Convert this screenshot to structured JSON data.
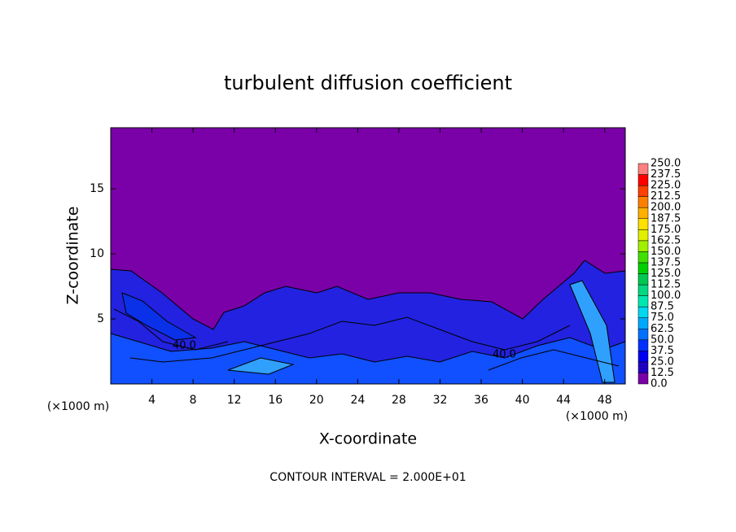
{
  "chart_data": {
    "type": "contour",
    "title": "turbulent diffusion coefficient",
    "xlabel": "X-coordinate",
    "ylabel": "Z-coordinate",
    "x_unit": "(×1000 m)",
    "x_unit_right": "(×1000 m)",
    "footnote": "CONTOUR INTERVAL = 2.000E+01",
    "annotations": [
      "40.0",
      "40.0"
    ],
    "xlim": [
      0,
      50
    ],
    "xticks": [
      4,
      8,
      12,
      16,
      20,
      24,
      28,
      32,
      36,
      40,
      44,
      48
    ],
    "ylim": [
      0,
      19.7
    ],
    "yticks": [
      5,
      10,
      15
    ],
    "colorbar": {
      "levels": [
        {
          "value": 0,
          "label": "0.0"
        },
        {
          "value": 12.5,
          "label": "12.5"
        },
        {
          "value": 25,
          "label": "25.0"
        },
        {
          "value": 37.5,
          "label": "37.5"
        },
        {
          "value": 50,
          "label": "50.0"
        },
        {
          "value": 62.5,
          "label": "62.5"
        },
        {
          "value": 75,
          "label": "75.0"
        },
        {
          "value": 87.5,
          "label": "87.5"
        },
        {
          "value": 100,
          "label": "100.0"
        },
        {
          "value": 112.5,
          "label": "112.5"
        },
        {
          "value": 125,
          "label": "125.0"
        },
        {
          "value": 137.5,
          "label": "137.5"
        },
        {
          "value": 150,
          "label": "150.0"
        },
        {
          "value": 162.5,
          "label": "162.5"
        },
        {
          "value": 175,
          "label": "175.0"
        },
        {
          "value": 187.5,
          "label": "187.5"
        },
        {
          "value": 200,
          "label": "200.0"
        },
        {
          "value": 212.5,
          "label": "212.5"
        },
        {
          "value": 225,
          "label": "225.0"
        },
        {
          "value": 237.5,
          "label": "237.5"
        },
        {
          "value": 250,
          "label": "250.0"
        }
      ],
      "colors": [
        "#7a00a8",
        "#2000c0",
        "#0000f0",
        "#0030ff",
        "#0070ff",
        "#00a8ff",
        "#00d8f0",
        "#00e8b0",
        "#00d880",
        "#00c850",
        "#00d000",
        "#40e000",
        "#a0f000",
        "#e0f000",
        "#ffe000",
        "#ffb000",
        "#ff8000",
        "#ff4000",
        "#ff0000",
        "#ff8080"
      ]
    }
  }
}
